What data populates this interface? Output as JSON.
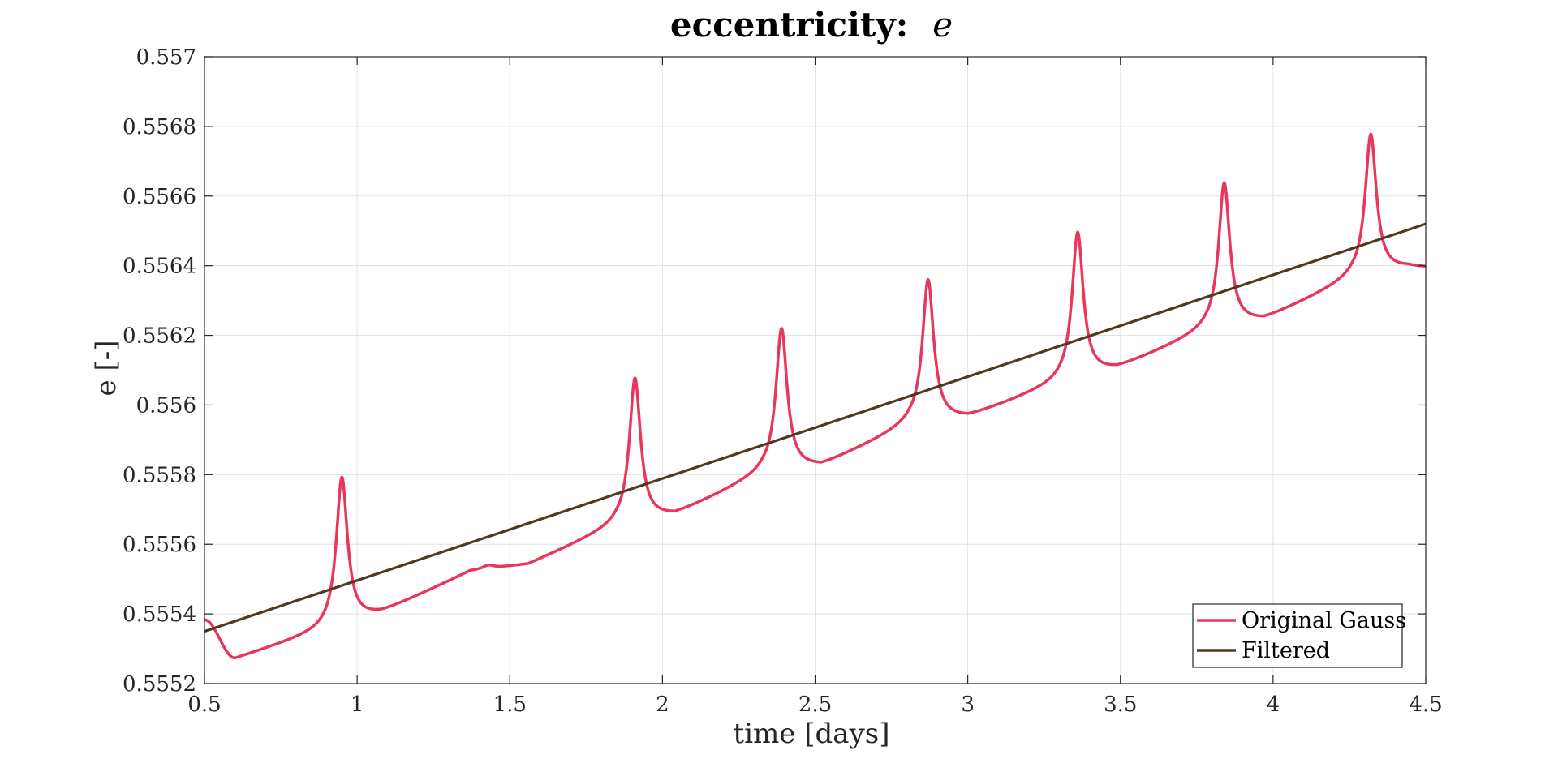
{
  "chart_data": {
    "type": "line",
    "title": "eccentricity:",
    "title_variable": "e",
    "xlabel": "time [days]",
    "ylabel": "e [-]",
    "xlim": [
      0.5,
      4.5
    ],
    "ylim": [
      0.5552,
      0.557
    ],
    "xticks": [
      0.5,
      1,
      1.5,
      2,
      2.5,
      3,
      3.5,
      4,
      4.5
    ],
    "xtick_labels": [
      "0.5",
      "1",
      "1.5",
      "2",
      "2.5",
      "3",
      "3.5",
      "4",
      "4.5"
    ],
    "yticks": [
      0.5552,
      0.5554,
      0.5556,
      0.5558,
      0.556,
      0.5562,
      0.5564,
      0.5566,
      0.5568,
      0.557
    ],
    "ytick_labels": [
      "0.5552",
      "0.5554",
      "0.5556",
      "0.5558",
      "0.556",
      "0.5562",
      "0.5564",
      "0.5566",
      "0.5568",
      "0.557"
    ],
    "grid": true,
    "legend_position": "bottom-right",
    "series": [
      {
        "name": "Original Gauss",
        "color": "#e8365d",
        "style": "periodic-peaks",
        "x_start": 0.5,
        "x_end": 4.5,
        "start_value": 0.55544,
        "end_value": 0.55646,
        "peaks": [
          {
            "x": 0.95,
            "peak": 0.55586,
            "base_before": 0.55541,
            "trough_x": 1.08,
            "trough": 0.55546
          },
          {
            "x": 1.43,
            "peak": 0.5556,
            "base_before": 0.55558,
            "trough_x": 1.56,
            "trough": 0.5556
          },
          {
            "x": 1.91,
            "peak": 0.55614,
            "base_before": 0.55571,
            "trough_x": 2.04,
            "trough": 0.55574
          },
          {
            "x": 2.39,
            "peak": 0.55628,
            "base_before": 0.55586,
            "trough_x": 2.52,
            "trough": 0.55588
          },
          {
            "x": 2.87,
            "peak": 0.55642,
            "base_before": 0.556,
            "trough_x": 3.0,
            "trough": 0.55602
          },
          {
            "x": 3.36,
            "peak": 0.55656,
            "base_before": 0.55612,
            "trough_x": 3.49,
            "trough": 0.55616
          },
          {
            "x": 3.84,
            "peak": 0.5567,
            "base_before": 0.55627,
            "trough_x": 3.97,
            "trough": 0.5563
          },
          {
            "x": 4.32,
            "peak": 0.55684,
            "base_before": 0.55642,
            "trough_x": 4.44,
            "trough": 0.55645
          }
        ],
        "first_trough": {
          "x": 0.6,
          "y": 0.55533
        }
      },
      {
        "name": "Filtered",
        "color": "#4f3a1e",
        "x": [
          0.5,
          4.5
        ],
        "y": [
          0.55535,
          0.55652
        ]
      }
    ]
  }
}
